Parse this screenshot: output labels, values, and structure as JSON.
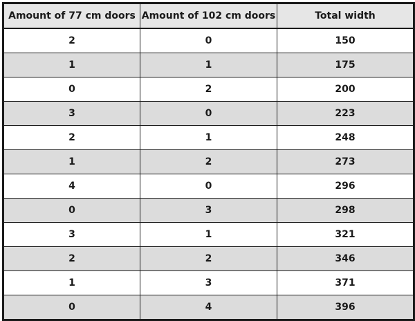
{
  "table": {
    "headers": [
      "Amount of 77 cm doors",
      "Amount of 102 cm doors",
      "Total width"
    ],
    "rows": [
      [
        "2",
        "0",
        "150"
      ],
      [
        "1",
        "1",
        "175"
      ],
      [
        "0",
        "2",
        "200"
      ],
      [
        "3",
        "0",
        "223"
      ],
      [
        "2",
        "1",
        "248"
      ],
      [
        "1",
        "2",
        "273"
      ],
      [
        "4",
        "0",
        "296"
      ],
      [
        "0",
        "3",
        "298"
      ],
      [
        "3",
        "1",
        "321"
      ],
      [
        "2",
        "2",
        "346"
      ],
      [
        "1",
        "3",
        "371"
      ],
      [
        "0",
        "4",
        "396"
      ]
    ]
  },
  "colors": {
    "header_bg": "#e6e6e6",
    "stripe_bg": "#dcdcdc",
    "row_bg": "#ffffff",
    "border": "#1a1a1a"
  }
}
